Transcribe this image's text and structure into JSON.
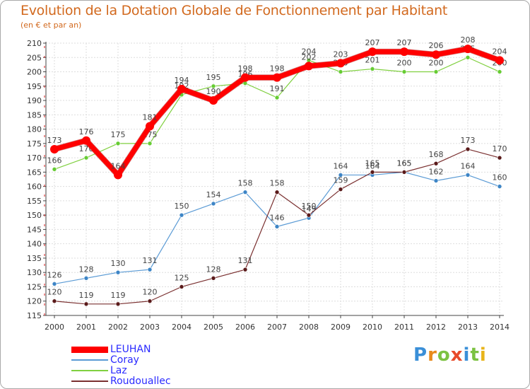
{
  "title": "Evolution de la Dotation Globale de Fonctionnement par Habitant",
  "subtitle": "(en € et par an)",
  "logo_letters": [
    "P",
    "r",
    "o",
    "x",
    "i",
    "t",
    "i"
  ],
  "colors": {
    "title": "#d2691e",
    "legend_text": "#2a2aff",
    "grid": "#dddddd",
    "axis": "#444444"
  },
  "chart_data": {
    "type": "line",
    "x": [
      "2000",
      "2001",
      "2002",
      "2003",
      "2004",
      "2005",
      "2006",
      "2007",
      "2008",
      "2009",
      "2010",
      "2011",
      "2012",
      "2013",
      "2014"
    ],
    "ylim": [
      115,
      210
    ],
    "yticks": [
      115,
      120,
      125,
      130,
      135,
      140,
      145,
      150,
      155,
      160,
      165,
      170,
      175,
      180,
      185,
      190,
      195,
      200,
      205,
      210
    ],
    "xlabel": "",
    "ylabel": "",
    "legend_position": "bottom-left",
    "series": [
      {
        "name": "Laz",
        "color": "#80d040",
        "dot": "#66cc33",
        "width": 1.2,
        "dotRadius": 3,
        "values": [
          166,
          170,
          175,
          175,
          192,
          195,
          196,
          191,
          204,
          200,
          201,
          200,
          200,
          205,
          200
        ],
        "labels": [
          "166",
          "170",
          "175",
          "175",
          "192",
          "195",
          "196",
          "191",
          "204",
          "200",
          "201",
          "200",
          "200",
          "205",
          "200"
        ]
      },
      {
        "name": "Coray",
        "color": "#5b9bd5",
        "dot": "#3d85c6",
        "width": 1.2,
        "dotRadius": 3,
        "values": [
          126,
          128,
          130,
          131,
          150,
          154,
          158,
          146,
          149,
          164,
          164,
          165,
          162,
          164,
          160
        ],
        "labels": [
          "126",
          "128",
          "130",
          "131",
          "150",
          "154",
          "158",
          "146",
          "149",
          "164",
          "164",
          "165",
          "162",
          "164",
          "160"
        ]
      },
      {
        "name": "Roudouallec",
        "color": "#7a3030",
        "dot": "#5a1a1a",
        "width": 1.2,
        "dotRadius": 3,
        "values": [
          120,
          119,
          119,
          120,
          125,
          128,
          131,
          158,
          150,
          159,
          165,
          165,
          168,
          173,
          170
        ],
        "labels": [
          "120",
          "119",
          "119",
          "120",
          "125",
          "128",
          "131",
          "158",
          "150",
          "159",
          "165",
          "165",
          "168",
          "173",
          "170"
        ]
      },
      {
        "name": "LEUHAN",
        "color": "#ff0000",
        "dot": "#ff0000",
        "width": 7,
        "dotRadius": 6,
        "values": [
          173,
          176,
          164,
          181,
          194,
          190,
          198,
          198,
          202,
          203,
          207,
          207,
          206,
          208,
          204
        ],
        "labels": [
          "173",
          "176",
          "164",
          "181",
          "194",
          "190",
          "198",
          "198",
          "202",
          "203",
          "207",
          "207",
          "206",
          "208",
          "204"
        ]
      }
    ],
    "legend_order": [
      "LEUHAN",
      "Coray",
      "Laz",
      "Roudouallec"
    ]
  }
}
